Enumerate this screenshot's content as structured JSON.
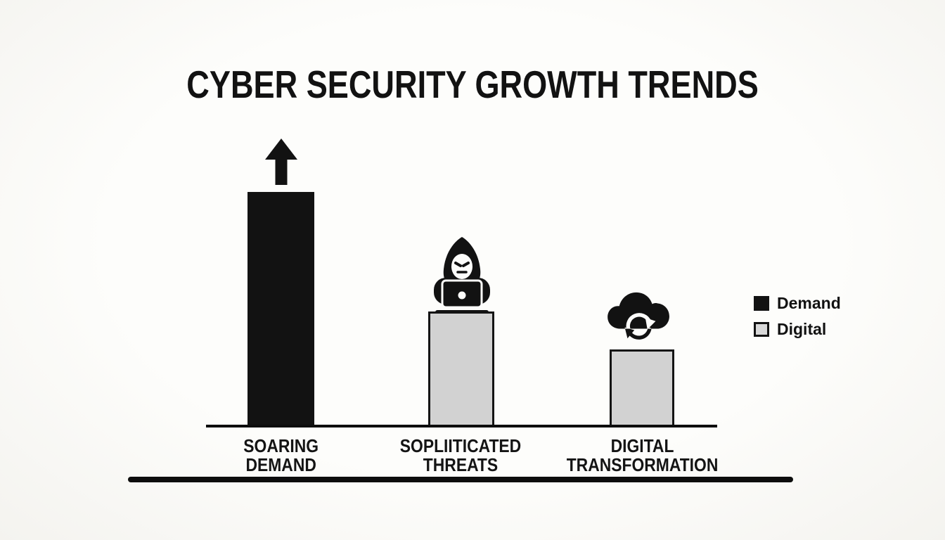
{
  "title": "CYBER SECURITY GROWTH TRENDS",
  "chart_data": {
    "type": "bar",
    "title": "CYBER SECURITY GROWTH TRENDS",
    "categories": [
      "SOARING DEMAND",
      "SOPLIITICATED THREATS",
      "DIGITAL TRANSFORMATION"
    ],
    "values": [
      100,
      49,
      33
    ],
    "value_units": "relative-height-percent (no numeric axis shown)",
    "xlabel": "",
    "ylabel": "",
    "grid": false,
    "legend_position": "right",
    "bars": [
      {
        "label_line1": "SOARING",
        "label_line2": "DEMAND",
        "value": 100,
        "fill_color": "#121212",
        "border_color": "#121212",
        "icon": "up-arrow-icon"
      },
      {
        "label_line1": "SOPLIITICATED",
        "label_line2": "THREATS",
        "value": 49,
        "fill_color": "#d2d2d2",
        "border_color": "#141414",
        "icon": "hacker-laptop-icon"
      },
      {
        "label_line1": "DIGITAL",
        "label_line2": "TRANSFORMATION",
        "value": 33,
        "fill_color": "#d2d2d2",
        "border_color": "#141414",
        "icon": "cloud-sync-icon"
      }
    ],
    "legend": [
      {
        "label": "Demand",
        "swatch_color": "#121212",
        "swatch_border": "#121212"
      },
      {
        "label": "Digital",
        "swatch_color": "#d8d8d8",
        "swatch_border": "#121212"
      }
    ]
  },
  "colors": {
    "background": "#fbfaf7",
    "text": "#121212",
    "bar_black": "#121212",
    "bar_gray": "#d2d2d2",
    "baseline": "#0d0d0d"
  }
}
